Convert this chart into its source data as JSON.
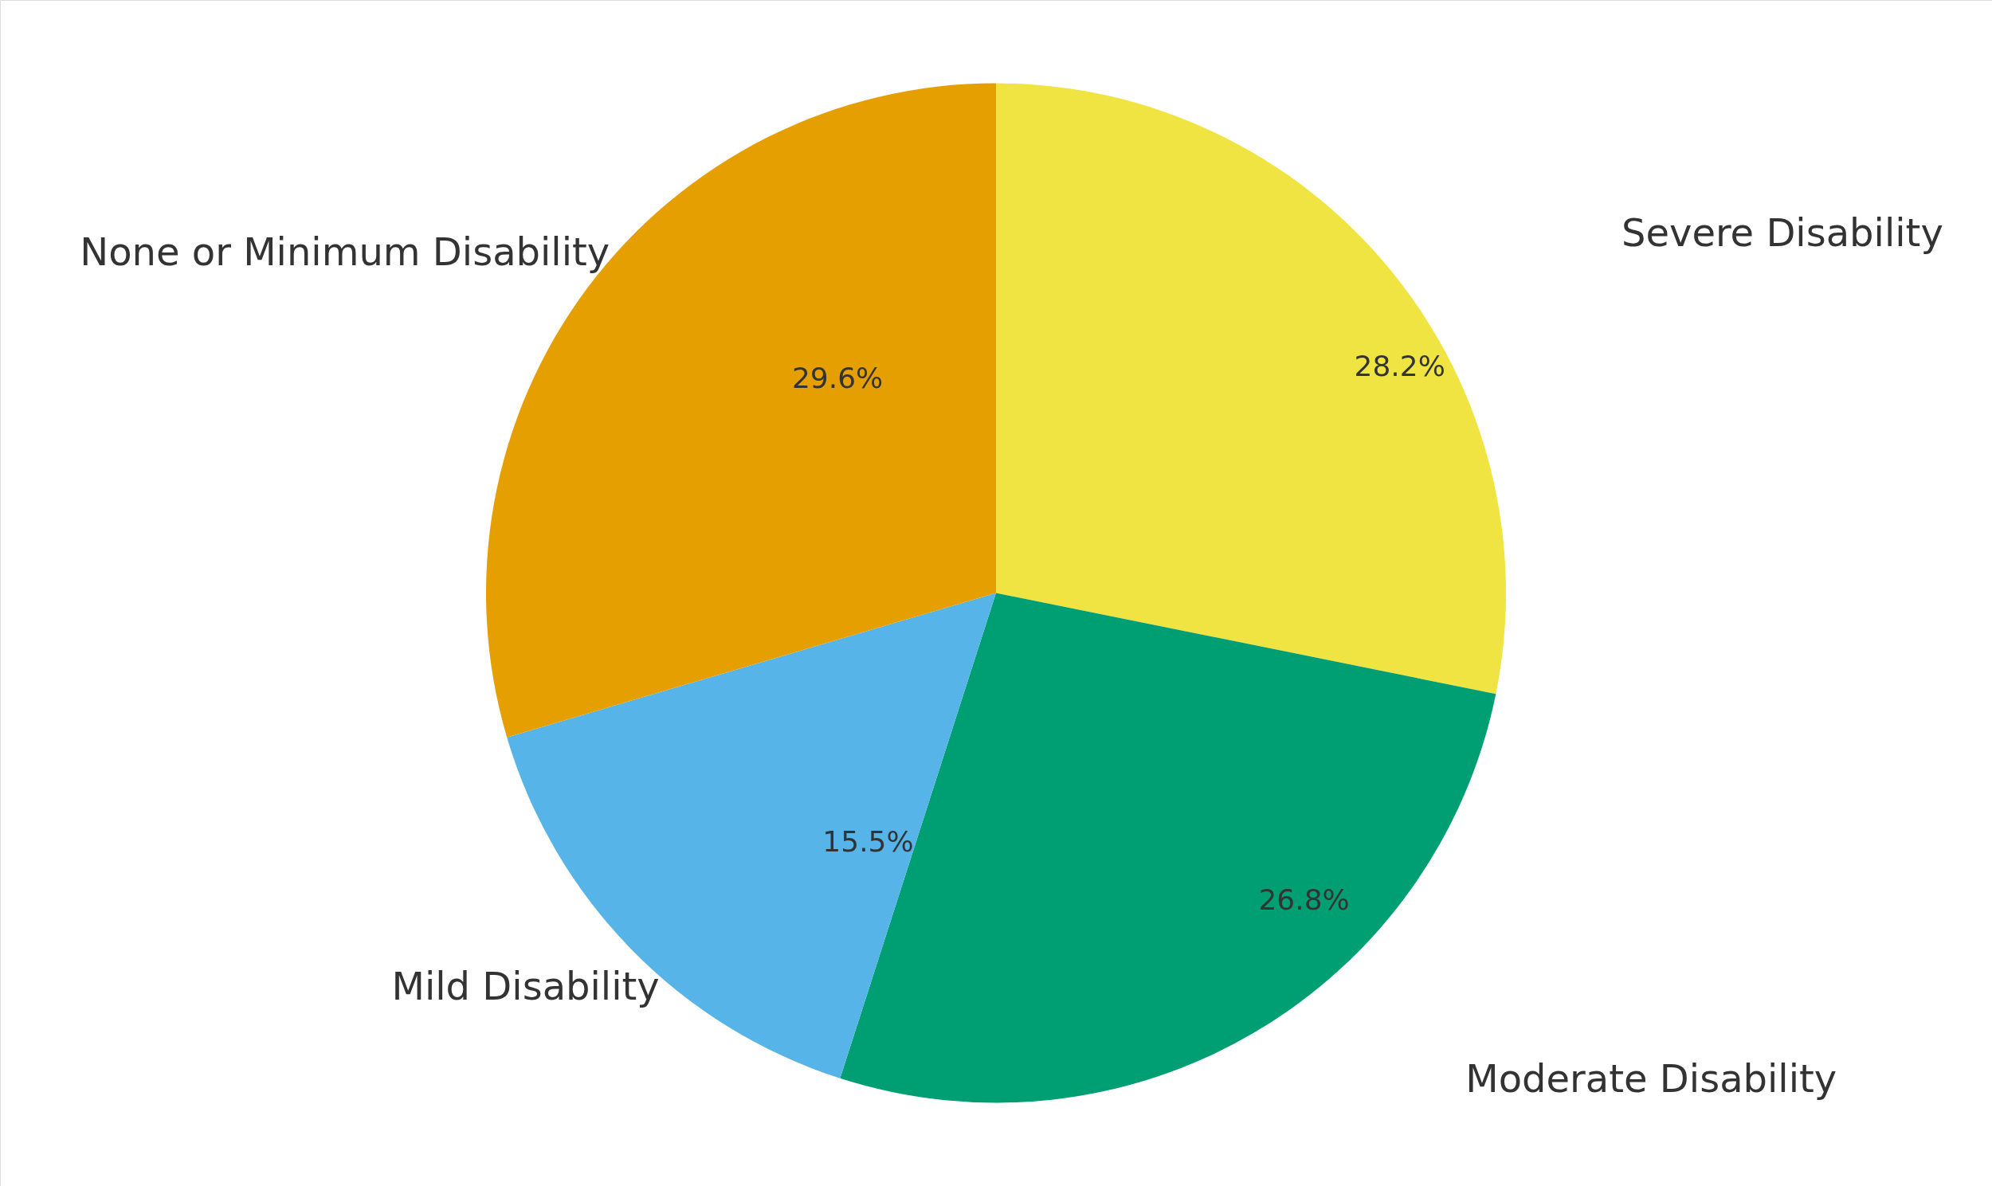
{
  "chart_data": {
    "type": "pie",
    "categories": [
      "Severe Disability",
      "Moderate Disability",
      "Mild Disability",
      "None or Minimum Disability"
    ],
    "values": [
      28.2,
      26.8,
      15.5,
      29.6
    ],
    "value_labels": [
      "28.2%",
      "26.8%",
      "15.5%",
      "29.6%"
    ],
    "colors": [
      "#f0e442",
      "#009e73",
      "#56b4e9",
      "#e69f00"
    ]
  }
}
